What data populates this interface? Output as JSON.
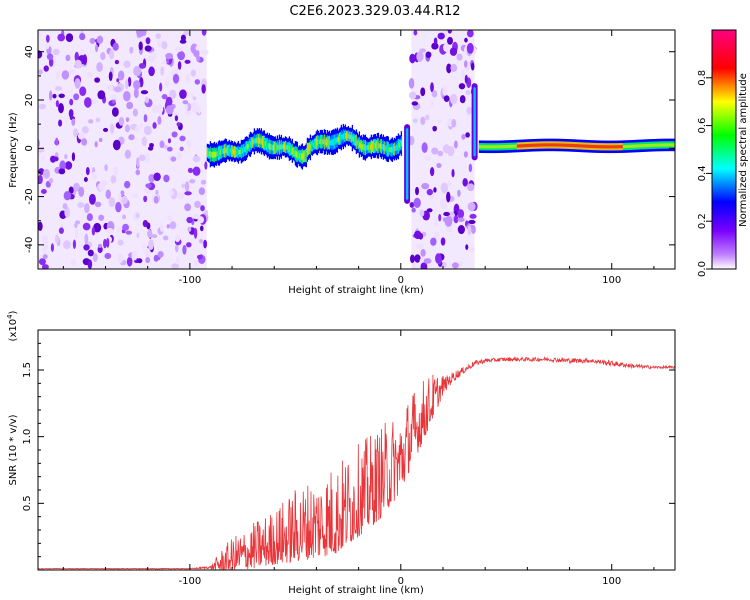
{
  "title": "C2E6.2023.329.03.44.R12",
  "chart_data": [
    {
      "type": "heatmap",
      "name": "spectrogram",
      "xlabel": "Height of straight line (km)",
      "ylabel": "Frequency (Hz)",
      "xlim": [
        -172,
        130
      ],
      "ylim": [
        -50,
        49
      ],
      "xticks": [
        -100,
        0,
        100
      ],
      "xtick_labels": [
        "-100",
        "0",
        "100"
      ],
      "yticks": [
        -40,
        -20,
        0,
        20,
        40
      ],
      "ytick_labels": [
        "-40",
        "-20",
        "0",
        "20",
        "40"
      ],
      "noise_regions_km": [
        [
          -172,
          -92
        ],
        [
          5,
          35
        ]
      ],
      "signal_segments": [
        {
          "x_start": -92,
          "x_end": 0,
          "center_freq_hz": 0,
          "note": "wavy band with dropouts"
        },
        {
          "x_start": 37,
          "x_end": 130,
          "center_freq_hz": 1,
          "note": "steady narrow band, peak near 60-100 km"
        }
      ],
      "vertical_spikes": [
        {
          "x_km": 3,
          "freq_range_hz": [
            -23,
            10
          ]
        },
        {
          "x_km": 35,
          "freq_range_hz": [
            -5,
            27
          ]
        }
      ],
      "colorbar": {
        "label": "Normalized spectral amplitude",
        "range": [
          0,
          1
        ],
        "ticks": [
          0.0,
          0.2,
          0.4,
          0.6,
          0.8
        ],
        "tick_labels": [
          "0.0",
          "0.2",
          "0.4",
          "0.6",
          "0.8"
        ],
        "colors": [
          "#ffffff",
          "#a000ff",
          "#0000ff",
          "#00ffff",
          "#00ff00",
          "#ffff00",
          "#ff0000",
          "#ff0080"
        ]
      }
    },
    {
      "type": "line",
      "name": "snr",
      "xlabel": "Height of straight line (km)",
      "ylabel": "SNR (10 * v/v)",
      "y_exponent_label": "(x10",
      "y_exponent_power": "4",
      "y_exponent_close": ")",
      "xlim": [
        -172,
        130
      ],
      "ylim": [
        0,
        1.8
      ],
      "xticks": [
        -100,
        0,
        100
      ],
      "xtick_labels": [
        "-100",
        "0",
        "100"
      ],
      "yticks": [
        0.5,
        1.0,
        1.5
      ],
      "ytick_labels": [
        "0.5",
        "1.0",
        "1.5"
      ],
      "color": "#e8363b",
      "envelope_km": [
        -172,
        -100,
        -90,
        -85,
        -80,
        -70,
        -60,
        -50,
        -40,
        -30,
        -20,
        -10,
        0,
        5,
        10,
        15,
        20,
        25,
        30,
        35,
        40,
        50,
        60,
        70,
        80,
        90,
        100,
        110,
        120,
        130
      ],
      "envelope_snr": [
        0.01,
        0.01,
        0.02,
        0.06,
        0.1,
        0.16,
        0.22,
        0.3,
        0.36,
        0.42,
        0.55,
        0.68,
        0.85,
        1.02,
        1.15,
        1.28,
        1.38,
        1.45,
        1.5,
        1.55,
        1.57,
        1.58,
        1.58,
        1.58,
        1.57,
        1.57,
        1.55,
        1.53,
        1.52,
        1.52
      ],
      "noise_amplitude": [
        0.005,
        0.005,
        0.02,
        0.12,
        0.18,
        0.25,
        0.3,
        0.4,
        0.45,
        0.5,
        0.5,
        0.5,
        0.45,
        0.4,
        0.35,
        0.25,
        0.12,
        0.08,
        0.05,
        0.04,
        0.03,
        0.03,
        0.03,
        0.03,
        0.04,
        0.03,
        0.04,
        0.03,
        0.02,
        0.02
      ]
    }
  ]
}
